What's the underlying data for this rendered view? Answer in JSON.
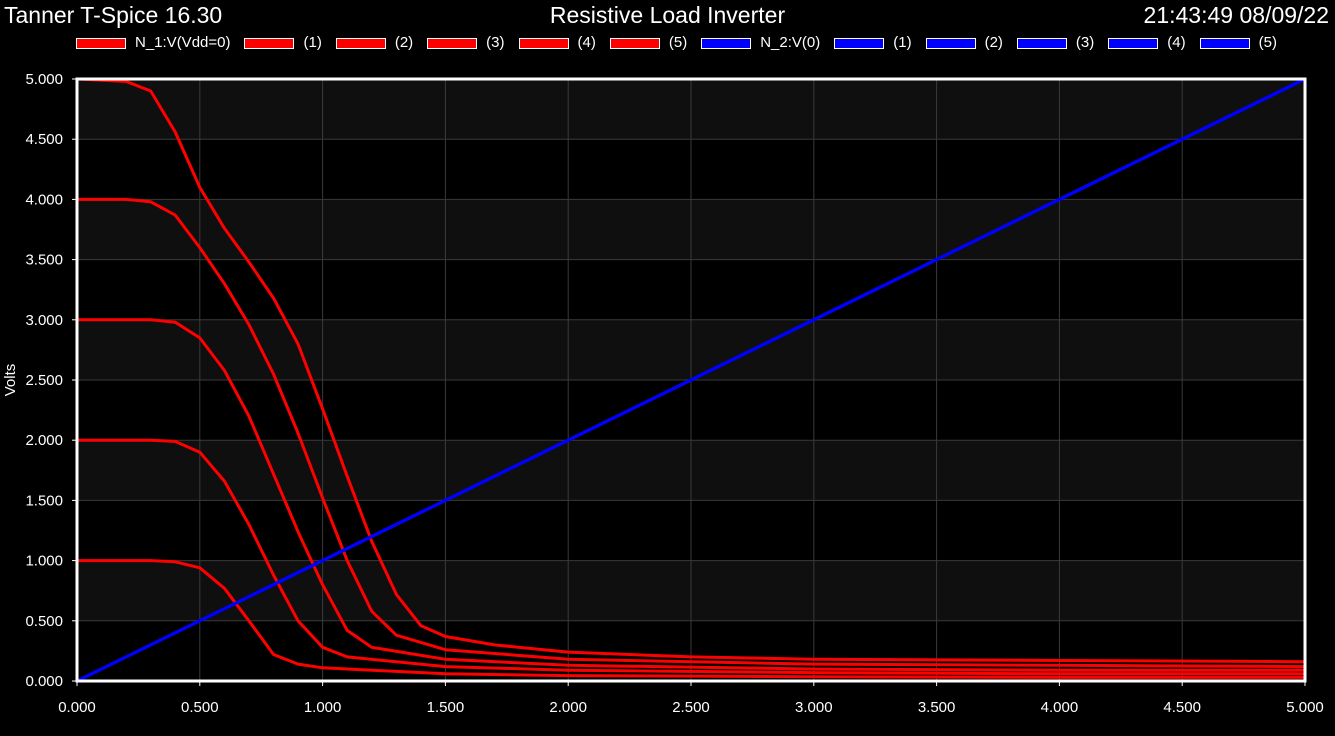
{
  "header": {
    "app_title": "Tanner T-Spice 16.30",
    "plot_title": "Resistive Load Inverter",
    "timestamp": "21:43:49 08/09/22"
  },
  "colors": {
    "background": "#000000",
    "plot_bg_a": "#000000",
    "plot_bg_b": "#0f0f0f",
    "grid": "#3a3a3a",
    "frame": "#ffffff",
    "red": "#ff0000",
    "blue": "#0000ff"
  },
  "chart_data": {
    "type": "line",
    "title": "Resistive Load Inverter",
    "xlabel": "",
    "ylabel": "Volts",
    "xlim": [
      0,
      5
    ],
    "ylim": [
      0,
      5
    ],
    "grid": true,
    "legend_position": "top",
    "x_ticks": [
      "0.000",
      "0.500",
      "1.000",
      "1.500",
      "2.000",
      "2.500",
      "3.000",
      "3.500",
      "4.000",
      "4.500",
      "5.000"
    ],
    "y_ticks": [
      "0.000",
      "0.500",
      "1.000",
      "1.500",
      "2.000",
      "2.500",
      "3.000",
      "3.500",
      "4.000",
      "4.500",
      "5.000"
    ],
    "series": [
      {
        "name": "N_1:V(Vdd=0)",
        "color": "#ff0000",
        "x": [
          0,
          5
        ],
        "y": [
          0,
          0
        ]
      },
      {
        "name": "(1)",
        "color": "#ff0000",
        "x": [
          0,
          0.3,
          0.4,
          0.5,
          0.6,
          0.7,
          0.8,
          0.9,
          1.0,
          1.5,
          2.0,
          3.0,
          4.0,
          5.0
        ],
        "y": [
          1.0,
          1.0,
          0.99,
          0.94,
          0.77,
          0.5,
          0.22,
          0.14,
          0.11,
          0.06,
          0.045,
          0.035,
          0.03,
          0.03
        ]
      },
      {
        "name": "(2)",
        "color": "#ff0000",
        "x": [
          0,
          0.3,
          0.4,
          0.5,
          0.6,
          0.7,
          0.8,
          0.9,
          1.0,
          1.1,
          1.5,
          2.0,
          3.0,
          4.0,
          5.0
        ],
        "y": [
          2.0,
          2.0,
          1.99,
          1.9,
          1.66,
          1.3,
          0.88,
          0.5,
          0.28,
          0.2,
          0.12,
          0.09,
          0.07,
          0.06,
          0.06
        ]
      },
      {
        "name": "(3)",
        "color": "#ff0000",
        "x": [
          0,
          0.3,
          0.4,
          0.5,
          0.6,
          0.7,
          0.8,
          0.9,
          1.0,
          1.1,
          1.2,
          1.5,
          2.0,
          3.0,
          4.0,
          5.0
        ],
        "y": [
          3.0,
          3.0,
          2.98,
          2.85,
          2.58,
          2.2,
          1.72,
          1.24,
          0.8,
          0.42,
          0.28,
          0.18,
          0.13,
          0.1,
          0.09,
          0.09
        ]
      },
      {
        "name": "(4)",
        "color": "#ff0000",
        "x": [
          0,
          0.2,
          0.3,
          0.4,
          0.5,
          0.6,
          0.7,
          0.8,
          0.9,
          1.0,
          1.1,
          1.2,
          1.3,
          1.5,
          2.0,
          3.0,
          4.0,
          5.0
        ],
        "y": [
          4.0,
          4.0,
          3.98,
          3.87,
          3.6,
          3.3,
          2.96,
          2.55,
          2.06,
          1.52,
          1.0,
          0.58,
          0.38,
          0.26,
          0.18,
          0.14,
          0.13,
          0.12
        ]
      },
      {
        "name": "(5)",
        "color": "#ff0000",
        "x": [
          0,
          0.2,
          0.3,
          0.4,
          0.5,
          0.6,
          0.7,
          0.8,
          0.9,
          1.0,
          1.1,
          1.2,
          1.3,
          1.4,
          1.5,
          1.7,
          2.0,
          2.5,
          3.0,
          4.0,
          5.0
        ],
        "y": [
          5.0,
          4.98,
          4.9,
          4.56,
          4.1,
          3.76,
          3.48,
          3.18,
          2.8,
          2.26,
          1.7,
          1.16,
          0.72,
          0.46,
          0.37,
          0.3,
          0.24,
          0.2,
          0.18,
          0.17,
          0.16
        ]
      },
      {
        "name": "N_2:V(0)",
        "color": "#0000ff",
        "x": [
          0,
          5
        ],
        "y": [
          0,
          5
        ]
      },
      {
        "name": "(1)",
        "color": "#0000ff",
        "x": [
          0,
          5
        ],
        "y": [
          0,
          5
        ]
      },
      {
        "name": "(2)",
        "color": "#0000ff",
        "x": [
          0,
          5
        ],
        "y": [
          0,
          5
        ]
      },
      {
        "name": "(3)",
        "color": "#0000ff",
        "x": [
          0,
          5
        ],
        "y": [
          0,
          5
        ]
      },
      {
        "name": "(4)",
        "color": "#0000ff",
        "x": [
          0,
          5
        ],
        "y": [
          0,
          5
        ]
      },
      {
        "name": "(5)",
        "color": "#0000ff",
        "x": [
          0,
          5
        ],
        "y": [
          0,
          5
        ]
      }
    ]
  }
}
